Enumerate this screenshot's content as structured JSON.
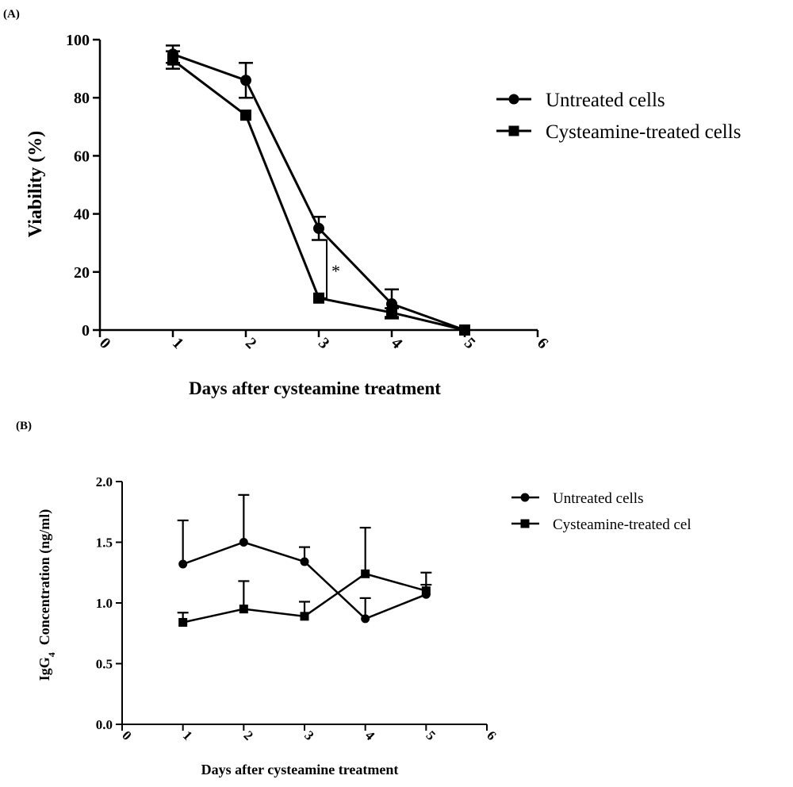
{
  "chart_data": [
    {
      "panel_label": "(A)",
      "type": "line",
      "xlabel": "Days after cysteamine treatment",
      "ylabel": "Viability (%)",
      "xlim": [
        0,
        6
      ],
      "ylim": [
        0,
        100
      ],
      "x_ticks": [
        0,
        1,
        2,
        3,
        4,
        5,
        6
      ],
      "y_ticks": [
        0,
        20,
        40,
        60,
        80,
        100
      ],
      "x_tick_labels": [
        "0",
        "1",
        "2",
        "3",
        "4",
        "5",
        "6"
      ],
      "y_tick_labels": [
        "0",
        "20",
        "40",
        "60",
        "80",
        "100"
      ],
      "grid": false,
      "legend_position": "right",
      "series": [
        {
          "name": "Untreated cells",
          "marker": "circle",
          "x": [
            1,
            2,
            3,
            4,
            5
          ],
          "y": [
            95,
            86,
            35,
            9,
            0
          ],
          "error": [
            3,
            6,
            4,
            5,
            0
          ],
          "error_direction": "both"
        },
        {
          "name": "Cysteamine-treated cells",
          "marker": "square",
          "x": [
            1,
            2,
            3,
            4,
            5
          ],
          "y": [
            93,
            74,
            11,
            6,
            0
          ],
          "error": [
            3,
            0,
            0,
            1.5,
            0
          ],
          "error_direction": "both"
        }
      ],
      "annotation": {
        "text": "*",
        "x": 3
      }
    },
    {
      "panel_label": "(B)",
      "type": "line",
      "xlabel": "Days after cysteamine treatment",
      "ylabel_prefix": "IgG",
      "ylabel_subscript": "4",
      "ylabel_suffix": "  Concentration (ng/ml)",
      "xlim": [
        0,
        6
      ],
      "ylim": [
        0,
        2
      ],
      "x_ticks": [
        0,
        1,
        2,
        3,
        4,
        5,
        6
      ],
      "y_ticks": [
        0,
        0.5,
        1,
        1.5,
        2
      ],
      "x_tick_labels": [
        "0",
        "1",
        "2",
        "3",
        "4",
        "5",
        "6"
      ],
      "y_tick_labels": [
        "0.0",
        "0.5",
        "1.0",
        "1.5",
        "2.0"
      ],
      "grid": false,
      "legend_position": "right",
      "series": [
        {
          "name": "Untreated cells",
          "marker": "circle",
          "x": [
            1,
            2,
            3,
            4,
            5
          ],
          "y": [
            1.32,
            1.5,
            1.34,
            0.87,
            1.07
          ],
          "error": [
            0.36,
            0.39,
            0.12,
            0.17,
            0.18
          ],
          "error_direction": "up"
        },
        {
          "name": "Cysteamine-treated cel",
          "marker": "square",
          "x": [
            1,
            2,
            3,
            4,
            5
          ],
          "y": [
            0.84,
            0.95,
            0.89,
            1.24,
            1.1
          ],
          "error": [
            0.08,
            0.23,
            0.12,
            0.38,
            0.05
          ],
          "error_direction": "up"
        }
      ]
    }
  ]
}
